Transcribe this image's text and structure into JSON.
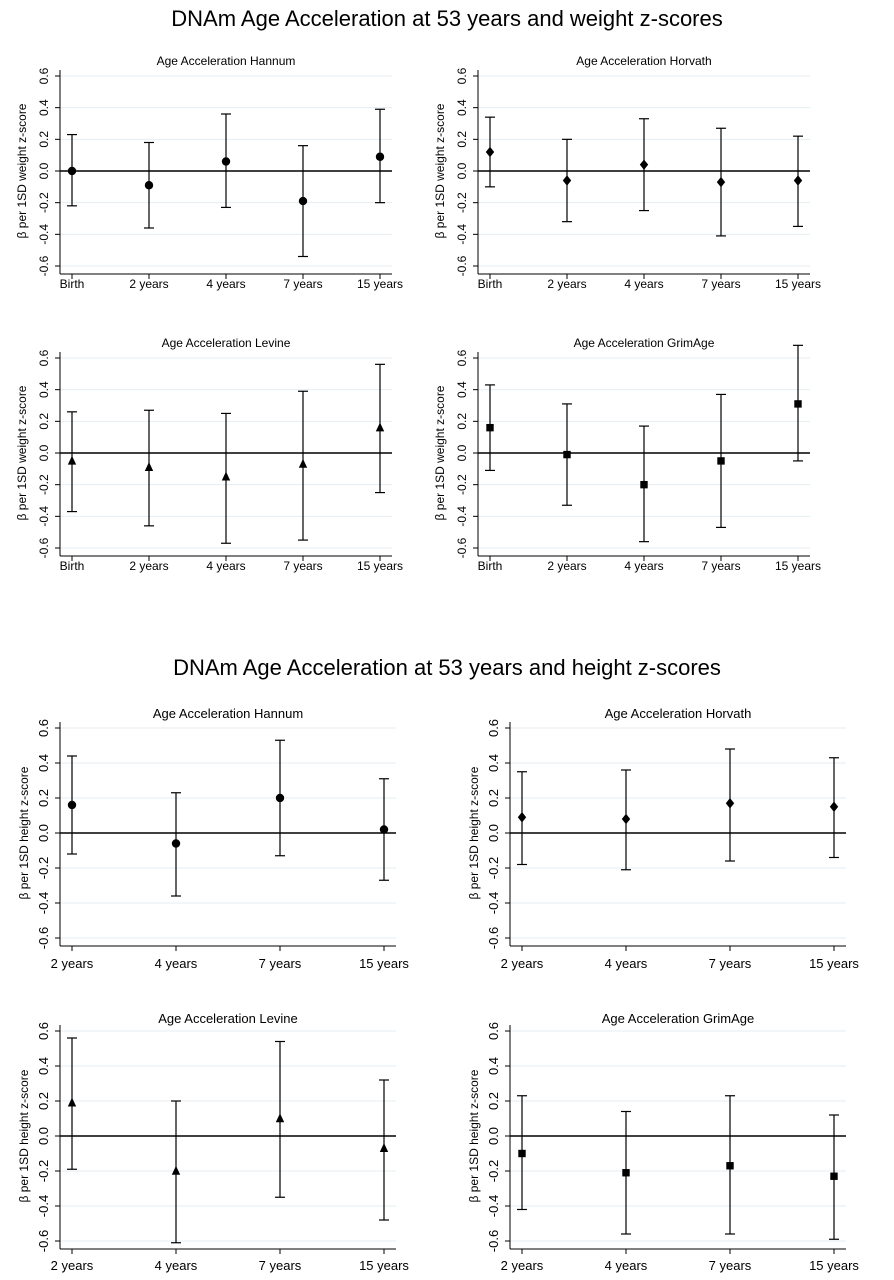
{
  "sections": {
    "weight": {
      "title": "DNAm Age Acceleration at 53 years and weight z-scores",
      "ylabel": "β per 1SD weight z-score"
    },
    "height": {
      "title": "DNAm Age Acceleration at 53 years and height z-scores",
      "ylabel": "β per 1SD height z-score"
    }
  },
  "chart_data": [
    {
      "type": "scatter",
      "title": "Age Acceleration Hannum",
      "ylabel": "β per 1SD weight z-score",
      "marker": "circle",
      "categories": [
        "Birth",
        "2 years",
        "4 years",
        "7 years",
        "15 years"
      ],
      "values": [
        0.0,
        -0.09,
        0.06,
        -0.19,
        0.09
      ],
      "ci_lower": [
        -0.22,
        -0.36,
        -0.23,
        -0.54,
        -0.2
      ],
      "ci_upper": [
        0.23,
        0.18,
        0.36,
        0.16,
        0.39
      ],
      "yticks": [
        "0.6",
        "0.4",
        "0.2",
        "0.0",
        "-0.2",
        "-0.4",
        "-0.6"
      ],
      "ylim": [
        -0.6,
        0.6
      ],
      "reference_line": 0
    },
    {
      "type": "scatter",
      "title": "Age Acceleration Horvath",
      "ylabel": "β per 1SD weight z-score",
      "marker": "diamond",
      "categories": [
        "Birth",
        "2 years",
        "4 years",
        "7 years",
        "15 years"
      ],
      "values": [
        0.12,
        -0.06,
        0.04,
        -0.07,
        -0.06
      ],
      "ci_lower": [
        -0.1,
        -0.32,
        -0.25,
        -0.41,
        -0.35
      ],
      "ci_upper": [
        0.34,
        0.2,
        0.33,
        0.27,
        0.22
      ],
      "yticks": [
        "0.6",
        "0.4",
        "0.2",
        "0.0",
        "-0.2",
        "-0.4",
        "-0.6"
      ],
      "ylim": [
        -0.6,
        0.6
      ],
      "reference_line": 0
    },
    {
      "type": "scatter",
      "title": "Age Acceleration Levine",
      "ylabel": "β per 1SD weight z-score",
      "marker": "triangle",
      "categories": [
        "Birth",
        "2 years",
        "4 years",
        "7 years",
        "15 years"
      ],
      "values": [
        -0.05,
        -0.09,
        -0.15,
        -0.07,
        0.16
      ],
      "ci_lower": [
        -0.37,
        -0.46,
        -0.57,
        -0.55,
        -0.25
      ],
      "ci_upper": [
        0.26,
        0.27,
        0.25,
        0.39,
        0.56
      ],
      "yticks": [
        "0.6",
        "0.4",
        "0.2",
        "0.0",
        "-0.2",
        "-0.4",
        "-0.6"
      ],
      "ylim": [
        -0.6,
        0.6
      ],
      "reference_line": 0
    },
    {
      "type": "scatter",
      "title": "Age Acceleration GrimAge",
      "ylabel": "β per 1SD weight z-score",
      "marker": "square",
      "categories": [
        "Birth",
        "2 years",
        "4 years",
        "7 years",
        "15 years"
      ],
      "values": [
        0.16,
        -0.01,
        -0.2,
        -0.05,
        0.31
      ],
      "ci_lower": [
        -0.11,
        -0.33,
        -0.56,
        -0.47,
        -0.05
      ],
      "ci_upper": [
        0.43,
        0.31,
        0.17,
        0.37,
        0.68
      ],
      "yticks": [
        "0.6",
        "0.4",
        "0.2",
        "0.0",
        "-0.2",
        "-0.4",
        "-0.6"
      ],
      "ylim": [
        -0.6,
        0.6
      ],
      "reference_line": 0
    },
    {
      "type": "scatter",
      "title": "Age Acceleration Hannum",
      "ylabel": "β per 1SD height z-score",
      "marker": "circle",
      "categories": [
        "2 years",
        "4 years",
        "7 years",
        "15 years"
      ],
      "values": [
        0.16,
        -0.06,
        0.2,
        0.02
      ],
      "ci_lower": [
        -0.12,
        -0.36,
        -0.13,
        -0.27
      ],
      "ci_upper": [
        0.44,
        0.23,
        0.53,
        0.31
      ],
      "yticks": [
        "0.6",
        "0.4",
        "0.2",
        "0.0",
        "-0.2",
        "-0.4",
        "-0.6"
      ],
      "ylim": [
        -0.6,
        0.6
      ],
      "reference_line": 0
    },
    {
      "type": "scatter",
      "title": "Age Acceleration Horvath",
      "ylabel": "β per 1SD height z-score",
      "marker": "diamond",
      "categories": [
        "2 years",
        "4 years",
        "7 years",
        "15 years"
      ],
      "values": [
        0.09,
        0.08,
        0.17,
        0.15
      ],
      "ci_lower": [
        -0.18,
        -0.21,
        -0.16,
        -0.14
      ],
      "ci_upper": [
        0.35,
        0.36,
        0.48,
        0.43
      ],
      "yticks": [
        "0.6",
        "0.4",
        "0.2",
        "0.0",
        "-0.2",
        "-0.4",
        "-0.6"
      ],
      "ylim": [
        -0.6,
        0.6
      ],
      "reference_line": 0
    },
    {
      "type": "scatter",
      "title": "Age Acceleration Levine",
      "ylabel": "β per 1SD height z-score",
      "marker": "triangle",
      "categories": [
        "2 years",
        "4 years",
        "7 years",
        "15 years"
      ],
      "values": [
        0.19,
        -0.2,
        0.1,
        -0.07
      ],
      "ci_lower": [
        -0.19,
        -0.61,
        -0.35,
        -0.48
      ],
      "ci_upper": [
        0.56,
        0.2,
        0.54,
        0.32
      ],
      "yticks": [
        "0.6",
        "0.4",
        "0.2",
        "0.0",
        "-0.2",
        "-0.4",
        "-0.6"
      ],
      "ylim": [
        -0.6,
        0.6
      ],
      "reference_line": 0
    },
    {
      "type": "scatter",
      "title": "Age Acceleration GrimAge",
      "ylabel": "β per 1SD height z-score",
      "marker": "square",
      "categories": [
        "2 years",
        "4 years",
        "7 years",
        "15 years"
      ],
      "values": [
        -0.1,
        -0.21,
        -0.17,
        -0.23
      ],
      "ci_lower": [
        -0.42,
        -0.56,
        -0.56,
        -0.59
      ],
      "ci_upper": [
        0.23,
        0.14,
        0.23,
        0.12
      ],
      "yticks": [
        "0.6",
        "0.4",
        "0.2",
        "0.0",
        "-0.2",
        "-0.4",
        "-0.6"
      ],
      "ylim": [
        -0.6,
        0.6
      ],
      "reference_line": 0
    }
  ]
}
